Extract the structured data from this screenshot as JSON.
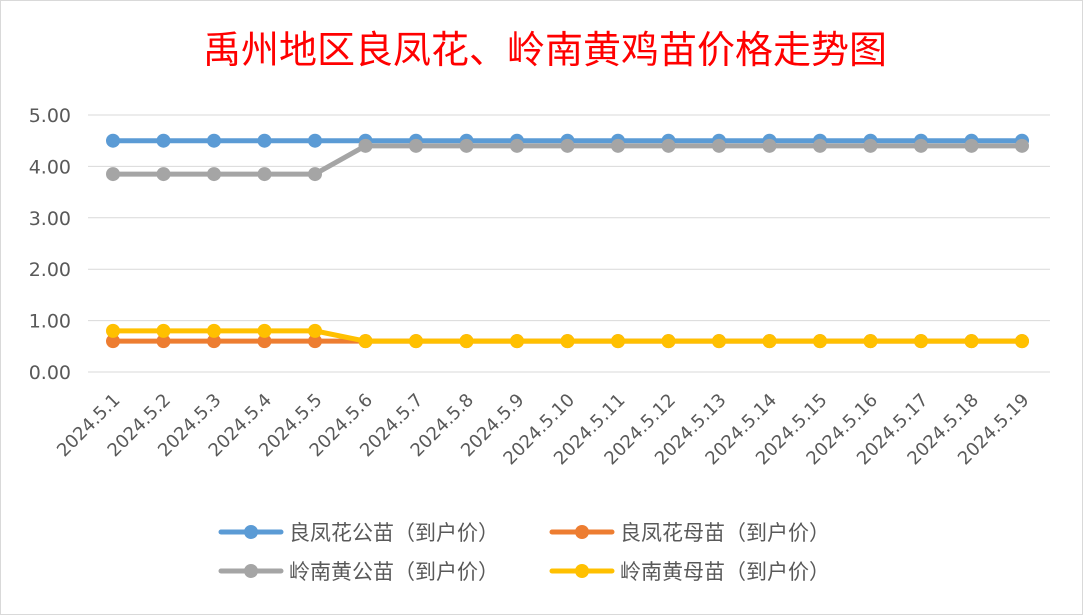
{
  "chart_data": {
    "type": "line",
    "title": "禹州地区良凤花、岭南黄鸡苗价格走势图",
    "xlabel": "",
    "ylabel": "",
    "ylim": [
      0,
      5
    ],
    "yticks": [
      "0.00",
      "1.00",
      "2.00",
      "3.00",
      "4.00",
      "5.00"
    ],
    "grid": true,
    "legend_position": "bottom",
    "categories": [
      "2024.5.1",
      "2024.5.2",
      "2024.5.3",
      "2024.5.4",
      "2024.5.5",
      "2024.5.6",
      "2024.5.7",
      "2024.5.8",
      "2024.5.9",
      "2024.5.10",
      "2024.5.11",
      "2024.5.12",
      "2024.5.13",
      "2024.5.14",
      "2024.5.15",
      "2024.5.16",
      "2024.5.17",
      "2024.5.18",
      "2024.5.19"
    ],
    "series": [
      {
        "name": "良凤花公苗（到户价）",
        "color": "#5b9bd5",
        "values": [
          4.5,
          4.5,
          4.5,
          4.5,
          4.5,
          4.5,
          4.5,
          4.5,
          4.5,
          4.5,
          4.5,
          4.5,
          4.5,
          4.5,
          4.5,
          4.5,
          4.5,
          4.5,
          4.5
        ]
      },
      {
        "name": "良凤花母苗（到户价）",
        "color": "#ed7d31",
        "values": [
          0.6,
          0.6,
          0.6,
          0.6,
          0.6,
          0.6,
          0.6,
          0.6,
          0.6,
          0.6,
          0.6,
          0.6,
          0.6,
          0.6,
          0.6,
          0.6,
          0.6,
          0.6,
          0.6
        ]
      },
      {
        "name": "岭南黄公苗（到户价）",
        "color": "#a5a5a5",
        "values": [
          3.85,
          3.85,
          3.85,
          3.85,
          3.85,
          4.4,
          4.4,
          4.4,
          4.4,
          4.4,
          4.4,
          4.4,
          4.4,
          4.4,
          4.4,
          4.4,
          4.4,
          4.4,
          4.4
        ]
      },
      {
        "name": "岭南黄母苗（到户价）",
        "color": "#ffc000",
        "values": [
          0.8,
          0.8,
          0.8,
          0.8,
          0.8,
          0.6,
          0.6,
          0.6,
          0.6,
          0.6,
          0.6,
          0.6,
          0.6,
          0.6,
          0.6,
          0.6,
          0.6,
          0.6,
          0.6
        ]
      }
    ]
  }
}
